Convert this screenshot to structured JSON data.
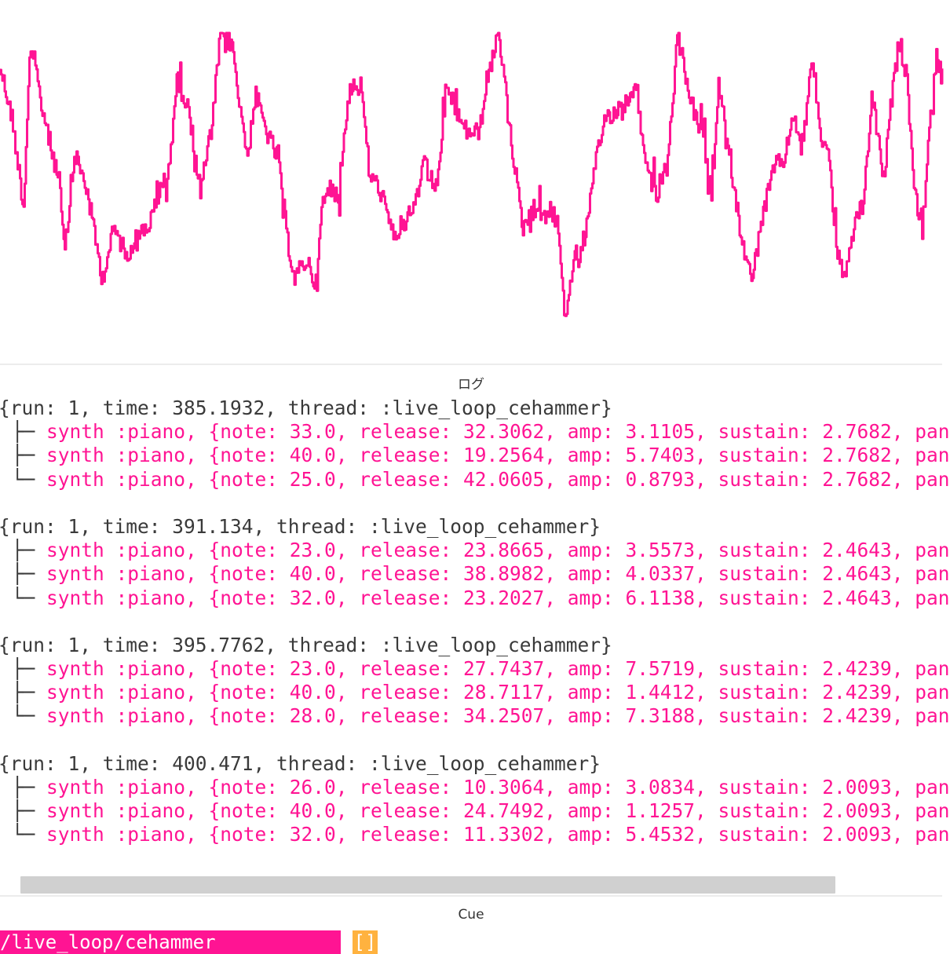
{
  "colors": {
    "accent": "#ff1493",
    "header_text": "#3a3a3a",
    "cue_value_bg": "#ffb23f",
    "scrollbar": "#d0d0d0"
  },
  "scope": {
    "icon": "waveform-icon"
  },
  "log": {
    "title": "ログ",
    "entries": [
      {
        "header": "{run: 1, time: 385.1932, thread: :live_loop_cehammer}",
        "lines": [
          {
            "branch": " ├─ ",
            "text": "synth :piano, {note: 33.0, release: 32.3062, amp: 3.1105, sustain: 2.7682, pan"
          },
          {
            "branch": " ├─ ",
            "text": "synth :piano, {note: 40.0, release: 19.2564, amp: 5.7403, sustain: 2.7682, pan"
          },
          {
            "branch": " └─ ",
            "text": "synth :piano, {note: 25.0, release: 42.0605, amp: 0.8793, sustain: 2.7682, pan"
          }
        ]
      },
      {
        "header": "{run: 1, time: 391.134, thread: :live_loop_cehammer}",
        "lines": [
          {
            "branch": " ├─ ",
            "text": "synth :piano, {note: 23.0, release: 23.8665, amp: 3.5573, sustain: 2.4643, pan"
          },
          {
            "branch": " ├─ ",
            "text": "synth :piano, {note: 40.0, release: 38.8982, amp: 4.0337, sustain: 2.4643, pan"
          },
          {
            "branch": " └─ ",
            "text": "synth :piano, {note: 32.0, release: 23.2027, amp: 6.1138, sustain: 2.4643, pan"
          }
        ]
      },
      {
        "header": "{run: 1, time: 395.7762, thread: :live_loop_cehammer}",
        "lines": [
          {
            "branch": " ├─ ",
            "text": "synth :piano, {note: 23.0, release: 27.7437, amp: 7.5719, sustain: 2.4239, pan"
          },
          {
            "branch": " ├─ ",
            "text": "synth :piano, {note: 40.0, release: 28.7117, amp: 1.4412, sustain: 2.4239, pan"
          },
          {
            "branch": " └─ ",
            "text": "synth :piano, {note: 28.0, release: 34.2507, amp: 7.3188, sustain: 2.4239, pan"
          }
        ]
      },
      {
        "header": "{run: 1, time: 400.471, thread: :live_loop_cehammer}",
        "lines": [
          {
            "branch": " ├─ ",
            "text": "synth :piano, {note: 26.0, release: 10.3064, amp: 3.0834, sustain: 2.0093, pan"
          },
          {
            "branch": " ├─ ",
            "text": "synth :piano, {note: 40.0, release: 24.7492, amp: 1.1257, sustain: 2.0093, pan"
          },
          {
            "branch": " └─ ",
            "text": "synth :piano, {note: 32.0, release: 11.3302, amp: 5.4532, sustain: 2.0093, pan"
          }
        ]
      }
    ]
  },
  "cue": {
    "title": "Cue",
    "path": "/live_loop/cehammer",
    "value": "[]"
  }
}
